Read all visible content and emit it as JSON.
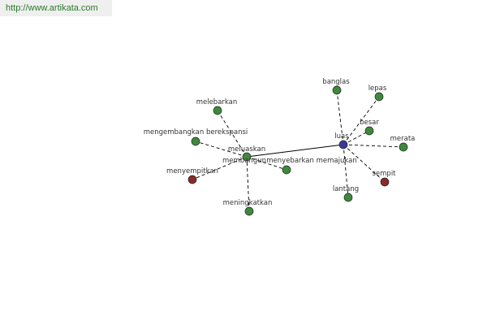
{
  "header": {
    "url": "http://www.artikata.com"
  },
  "colors": {
    "center": "#3a3a9a",
    "synonym": "#3d8a3d",
    "antonym": "#8a2a2a",
    "edge": "#000000"
  },
  "graph": {
    "nodes": [
      {
        "id": "luas",
        "label": "luas",
        "type": "center"
      },
      {
        "id": "meluaskan",
        "label": "meluaskan",
        "type": "synonym"
      },
      {
        "id": "banglas",
        "label": "banglas",
        "type": "synonym"
      },
      {
        "id": "lepas",
        "label": "lepas",
        "type": "synonym"
      },
      {
        "id": "besar",
        "label": "besar",
        "type": "synonym"
      },
      {
        "id": "merata",
        "label": "merata",
        "type": "synonym"
      },
      {
        "id": "sempit",
        "label": "sempit",
        "type": "antonym"
      },
      {
        "id": "lantang",
        "label": "lantang",
        "type": "synonym"
      },
      {
        "id": "melebarkan",
        "label": "melebarkan",
        "type": "synonym"
      },
      {
        "id": "mengembangkan",
        "label": "mengembangkan berekspansi",
        "type": "synonym"
      },
      {
        "id": "menyempitkan",
        "label": "menyempitkan",
        "type": "antonym"
      },
      {
        "id": "meningkatkan",
        "label": "meningkatkan",
        "type": "synonym"
      },
      {
        "id": "menyebarkan",
        "label": "menyebarkan memajukan",
        "type": "synonym"
      },
      {
        "id": "membangun",
        "label": "membangun",
        "type": "synonym"
      }
    ],
    "edges": [
      {
        "from": "luas",
        "to": "meluaskan",
        "style": "solid"
      },
      {
        "from": "luas",
        "to": "banglas",
        "style": "dashed"
      },
      {
        "from": "luas",
        "to": "lepas",
        "style": "dashed"
      },
      {
        "from": "luas",
        "to": "besar",
        "style": "dashed"
      },
      {
        "from": "luas",
        "to": "merata",
        "style": "dashed"
      },
      {
        "from": "luas",
        "to": "sempit",
        "style": "dashed"
      },
      {
        "from": "luas",
        "to": "lantang",
        "style": "dashed"
      },
      {
        "from": "meluaskan",
        "to": "melebarkan",
        "style": "dashed"
      },
      {
        "from": "meluaskan",
        "to": "mengembangkan",
        "style": "dashed"
      },
      {
        "from": "meluaskan",
        "to": "menyempitkan",
        "style": "dashed"
      },
      {
        "from": "meluaskan",
        "to": "meningkatkan",
        "style": "dashed"
      },
      {
        "from": "meluaskan",
        "to": "menyebarkan",
        "style": "dashed"
      }
    ]
  }
}
